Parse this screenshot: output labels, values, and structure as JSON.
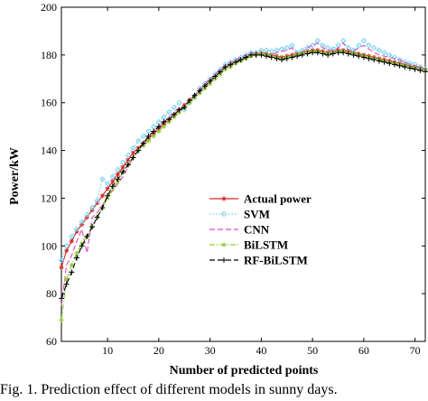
{
  "chart_data": {
    "type": "line",
    "title": "",
    "xlabel": "Number of predicted points",
    "ylabel": "Power/kW",
    "xlim": [
      1,
      72
    ],
    "ylim": [
      60,
      200
    ],
    "x_ticks": [
      10,
      20,
      30,
      40,
      50,
      60,
      70
    ],
    "y_ticks": [
      60,
      80,
      100,
      120,
      140,
      160,
      180,
      200
    ],
    "grid": false,
    "legend_position": "center-right",
    "series": [
      {
        "name": "Actual power",
        "color": "#d62728",
        "dash": "solid",
        "marker": "star",
        "values": [
          91,
          98,
          102,
          106,
          109,
          112,
          115,
          118,
          121,
          124,
          127,
          130,
          133,
          136,
          139,
          141,
          143,
          145,
          147,
          149,
          151,
          153,
          155,
          157,
          159,
          161,
          163,
          165,
          167,
          169,
          171,
          173,
          175,
          176,
          177,
          178,
          179,
          180,
          180.5,
          181,
          180.5,
          180,
          179.5,
          179,
          179.5,
          180,
          180.5,
          181,
          181.5,
          182,
          182,
          181.5,
          181,
          181.5,
          182,
          182,
          181.5,
          181,
          180.5,
          180,
          179.5,
          179,
          178.5,
          178,
          177.5,
          177,
          176.5,
          176,
          175.5,
          175,
          174.5,
          174
        ]
      },
      {
        "name": "SVM",
        "color": "#6fd0f0",
        "dash": "dotted",
        "marker": "diamond",
        "values": [
          94,
          100,
          104,
          107,
          110,
          113,
          116,
          119,
          128,
          126,
          129,
          132,
          135,
          138,
          141,
          144,
          146,
          148,
          150,
          152,
          154,
          156,
          158,
          160,
          157,
          160,
          163,
          166,
          168,
          170,
          172,
          174,
          176,
          177,
          178,
          179,
          180,
          181,
          181,
          182,
          182,
          181.5,
          182,
          182.5,
          183,
          184,
          181,
          182,
          183,
          184,
          186,
          184,
          183,
          182.5,
          184,
          186,
          183,
          182,
          184,
          186,
          184,
          183,
          182,
          181,
          180,
          179,
          178,
          177,
          176.5,
          176,
          175,
          174
        ]
      },
      {
        "name": "CNN",
        "color": "#e04aba",
        "dash": "dashed",
        "marker": "none",
        "values": [
          75,
          92,
          96,
          102,
          107,
          97,
          112,
          114,
          117,
          121,
          123,
          126,
          129,
          133,
          137,
          140,
          143,
          146,
          148,
          150,
          152,
          154,
          156,
          158,
          158,
          160,
          163,
          166,
          168,
          170,
          172,
          174,
          176,
          177,
          178,
          179,
          180,
          181,
          180.5,
          181,
          180.5,
          180,
          181,
          181.5,
          182,
          183,
          180,
          181,
          183,
          184,
          185,
          183,
          182,
          182,
          183,
          185,
          182,
          181.5,
          183,
          184,
          182.5,
          181,
          180,
          179.5,
          179,
          178.5,
          178,
          177,
          176,
          175.5,
          175,
          174
        ]
      },
      {
        "name": "BiLSTM",
        "color": "#8fce3a",
        "dash": "dashdot",
        "marker": "star",
        "values": [
          69,
          86,
          92,
          97,
          101,
          104,
          108,
          112,
          116,
          120,
          124,
          127,
          131,
          134,
          137,
          140,
          142,
          144,
          146,
          148,
          150,
          152,
          154,
          156,
          158,
          160,
          162,
          164,
          166,
          168,
          170,
          172,
          174,
          175,
          176.5,
          177.5,
          178.5,
          179.5,
          180,
          180.5,
          180,
          179.5,
          179,
          178.5,
          179,
          179.5,
          180,
          180.5,
          181,
          181.5,
          181.5,
          181,
          180.5,
          181,
          181.5,
          181.5,
          181,
          180.5,
          180,
          179.5,
          179,
          178.5,
          178,
          177.5,
          177,
          176.5,
          176,
          175.5,
          175,
          174.5,
          174,
          173.5
        ]
      },
      {
        "name": "RF-BiLSTM",
        "color": "#000000",
        "dash": "dashed",
        "marker": "plus",
        "values": [
          78,
          84,
          89,
          95,
          100,
          104,
          108,
          112,
          116,
          121,
          125,
          128,
          131,
          134,
          137,
          140,
          143,
          146,
          148,
          150,
          152,
          153,
          155,
          157,
          158,
          161,
          163,
          165,
          167,
          169,
          171,
          173,
          175,
          176,
          177,
          178,
          179,
          180,
          180,
          180,
          179.5,
          179,
          178.5,
          178,
          178.5,
          179,
          179.5,
          180,
          180.5,
          181,
          181,
          180.5,
          180,
          180.5,
          181,
          181,
          180.5,
          180,
          179.5,
          179,
          178.5,
          178,
          177.5,
          177,
          176.5,
          176,
          175.5,
          175,
          174.5,
          174,
          173.5,
          173
        ]
      }
    ]
  },
  "caption": "Fig. 1.   Prediction effect of different models in sunny days."
}
